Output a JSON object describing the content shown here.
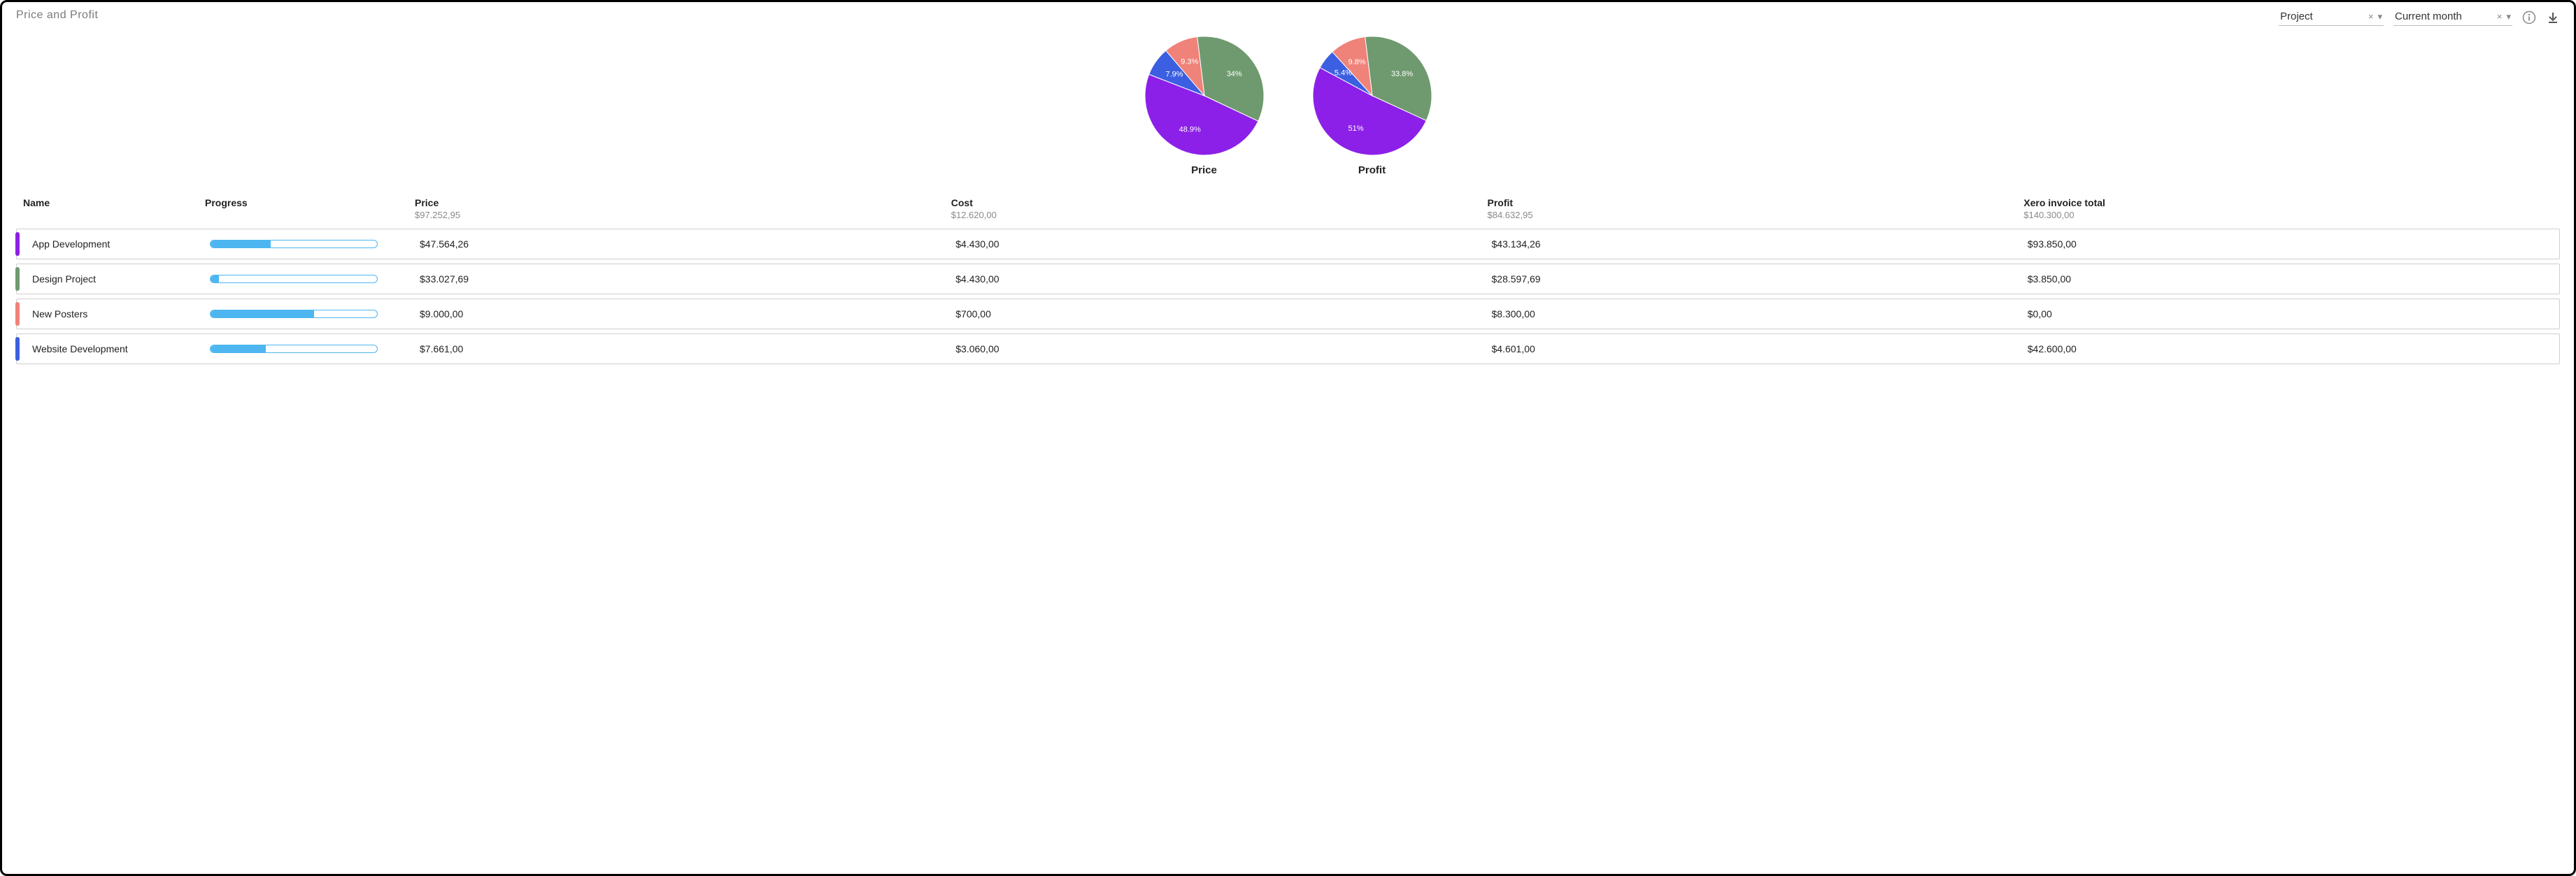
{
  "header": {
    "title": "Price and Profit",
    "filter_groupby": "Project",
    "filter_period": "Current month"
  },
  "icons": {
    "clear": "×",
    "caret": "▾",
    "info": "i",
    "download": "↓"
  },
  "colors": {
    "purple": "#8c20e8",
    "green": "#6f9a6f",
    "red": "#ef8279",
    "blue": "#3b5fe0",
    "progress": "#4db6f0",
    "border": "#cfcfcf",
    "text_muted": "#8a8a8a"
  },
  "charts": [
    {
      "label": "Price",
      "type": "pie",
      "radius": 85,
      "label_color": "#ffffff",
      "label_fontsize": 11,
      "start_angle_deg": -7,
      "slices": [
        {
          "key": "green",
          "color": "#6f9a6f",
          "value": 34.0,
          "label": "34%"
        },
        {
          "key": "purple",
          "color": "#8c20e8",
          "value": 48.9,
          "label": "48.9%"
        },
        {
          "key": "blue",
          "color": "#3b5fe0",
          "value": 7.9,
          "label": "7.9%"
        },
        {
          "key": "red",
          "color": "#ef8279",
          "value": 9.3,
          "label": "9.3%"
        }
      ]
    },
    {
      "label": "Profit",
      "type": "pie",
      "radius": 85,
      "label_color": "#ffffff",
      "label_fontsize": 11,
      "start_angle_deg": -7,
      "slices": [
        {
          "key": "green",
          "color": "#6f9a6f",
          "value": 33.8,
          "label": "33.8%"
        },
        {
          "key": "purple",
          "color": "#8c20e8",
          "value": 51.0,
          "label": "51%"
        },
        {
          "key": "blue",
          "color": "#3b5fe0",
          "value": 5.4,
          "label": "5.4%"
        },
        {
          "key": "red",
          "color": "#ef8279",
          "value": 9.8,
          "label": "9.8%"
        }
      ]
    }
  ],
  "table": {
    "columns": [
      {
        "key": "name",
        "label": "Name"
      },
      {
        "key": "progress",
        "label": "Progress"
      },
      {
        "key": "price",
        "label": "Price",
        "sub": "$97.252,95"
      },
      {
        "key": "cost",
        "label": "Cost",
        "sub": "$12.620,00"
      },
      {
        "key": "profit",
        "label": "Profit",
        "sub": "$84.632,95"
      },
      {
        "key": "xero",
        "label": "Xero invoice total",
        "sub": "$140.300,00"
      }
    ],
    "rows": [
      {
        "color": "#8c20e8",
        "name": "App Development",
        "progress": 0.36,
        "price": "$47.564,26",
        "cost": "$4.430,00",
        "profit": "$43.134,26",
        "xero": "$93.850,00"
      },
      {
        "color": "#6f9a6f",
        "name": "Design Project",
        "progress": 0.05,
        "price": "$33.027,69",
        "cost": "$4.430,00",
        "profit": "$28.597,69",
        "xero": "$3.850,00"
      },
      {
        "color": "#ef8279",
        "name": "New Posters",
        "progress": 0.62,
        "price": "$9.000,00",
        "cost": "$700,00",
        "profit": "$8.300,00",
        "xero": "$0,00"
      },
      {
        "color": "#3b5fe0",
        "name": "Website Development",
        "progress": 0.33,
        "price": "$7.661,00",
        "cost": "$3.060,00",
        "profit": "$4.601,00",
        "xero": "$42.600,00"
      }
    ]
  }
}
